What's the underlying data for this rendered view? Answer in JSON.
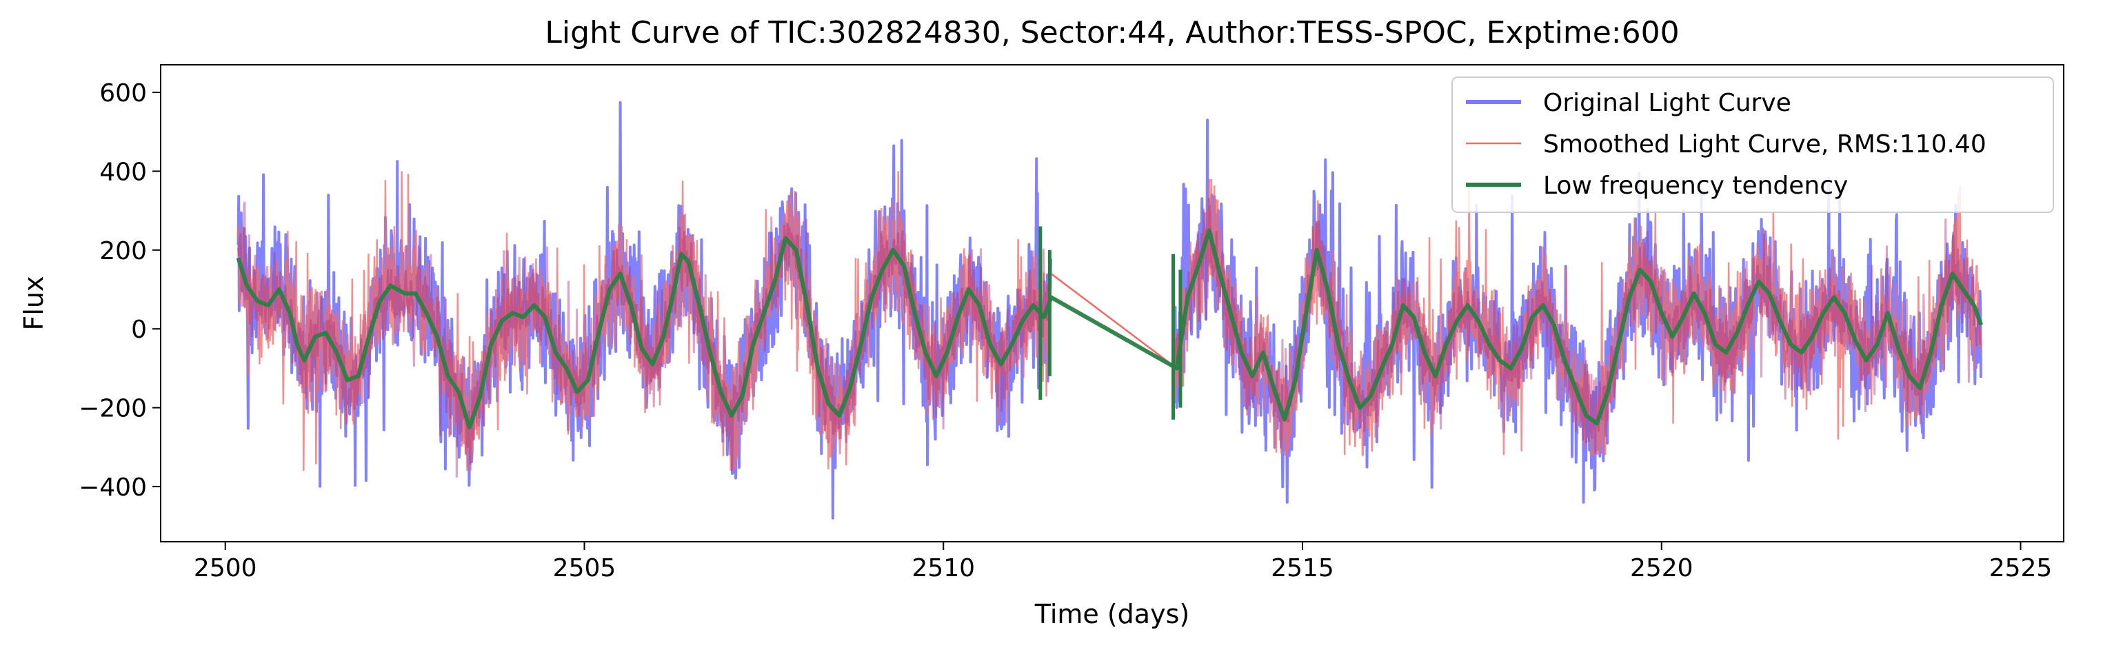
{
  "chart_data": {
    "type": "line",
    "title": "Light Curve of TIC:302824830, Sector:44, Author:TESS-SPOC, Exptime:600",
    "xlabel": "Time (days)",
    "ylabel": "Flux",
    "xlim": [
      2499.1,
      2525.6
    ],
    "ylim": [
      -540,
      670
    ],
    "x_ticks": [
      2500,
      2505,
      2510,
      2515,
      2520,
      2525
    ],
    "y_ticks": [
      -400,
      -200,
      0,
      200,
      400,
      600
    ],
    "x_tick_labels": [
      "2500",
      "2505",
      "2510",
      "2515",
      "2520",
      "2525"
    ],
    "y_tick_labels": [
      "−400",
      "−200",
      "0",
      "200",
      "400",
      "600"
    ],
    "grid": false,
    "legend_position": "top-right",
    "gap": [
      11.5,
      13.2
    ],
    "series": [
      {
        "name": "Original Light Curve",
        "color": "#7b7bff",
        "segments": [
          {
            "x_start": 2500.18,
            "x_end": 2511.5,
            "y_min": -480,
            "y_max": 615
          },
          {
            "x_start": 2513.2,
            "x_end": 2524.45,
            "y_min": -440,
            "y_max": 530
          }
        ]
      },
      {
        "name": "Smoothed Light Curve, RMS:110.40",
        "color": "#f06a6a",
        "segments": [
          {
            "x_start": 2500.18,
            "x_end": 2511.5,
            "y_min": -360,
            "y_max": 400
          },
          {
            "x_start": 2513.2,
            "x_end": 2524.45,
            "y_min": -320,
            "y_max": 380
          }
        ]
      },
      {
        "name": "Low frequency tendency",
        "color": "#2a7f45",
        "points": [
          [
            2500.18,
            180
          ],
          [
            2500.3,
            110
          ],
          [
            2500.45,
            70
          ],
          [
            2500.6,
            60
          ],
          [
            2500.75,
            100
          ],
          [
            2500.9,
            40
          ],
          [
            2501.0,
            -40
          ],
          [
            2501.1,
            -80
          ],
          [
            2501.25,
            -20
          ],
          [
            2501.4,
            -10
          ],
          [
            2501.55,
            -60
          ],
          [
            2501.7,
            -130
          ],
          [
            2501.85,
            -120
          ],
          [
            2502.0,
            -20
          ],
          [
            2502.15,
            70
          ],
          [
            2502.3,
            110
          ],
          [
            2502.5,
            90
          ],
          [
            2502.65,
            90
          ],
          [
            2502.8,
            40
          ],
          [
            2502.95,
            -20
          ],
          [
            2503.1,
            -120
          ],
          [
            2503.25,
            -160
          ],
          [
            2503.4,
            -250
          ],
          [
            2503.55,
            -170
          ],
          [
            2503.7,
            -40
          ],
          [
            2503.85,
            20
          ],
          [
            2504.0,
            40
          ],
          [
            2504.15,
            30
          ],
          [
            2504.3,
            60
          ],
          [
            2504.45,
            30
          ],
          [
            2504.6,
            -60
          ],
          [
            2504.75,
            -100
          ],
          [
            2504.9,
            -160
          ],
          [
            2505.05,
            -130
          ],
          [
            2505.2,
            -10
          ],
          [
            2505.35,
            100
          ],
          [
            2505.5,
            140
          ],
          [
            2505.65,
            60
          ],
          [
            2505.8,
            -50
          ],
          [
            2505.95,
            -90
          ],
          [
            2506.1,
            -20
          ],
          [
            2506.25,
            100
          ],
          [
            2506.35,
            190
          ],
          [
            2506.45,
            170
          ],
          [
            2506.6,
            60
          ],
          [
            2506.75,
            -60
          ],
          [
            2506.9,
            -160
          ],
          [
            2507.05,
            -220
          ],
          [
            2507.2,
            -170
          ],
          [
            2507.35,
            -40
          ],
          [
            2507.5,
            40
          ],
          [
            2507.65,
            120
          ],
          [
            2507.8,
            230
          ],
          [
            2507.95,
            200
          ],
          [
            2508.1,
            60
          ],
          [
            2508.25,
            -100
          ],
          [
            2508.4,
            -190
          ],
          [
            2508.55,
            -220
          ],
          [
            2508.7,
            -150
          ],
          [
            2508.85,
            -40
          ],
          [
            2509.0,
            80
          ],
          [
            2509.15,
            150
          ],
          [
            2509.3,
            200
          ],
          [
            2509.45,
            160
          ],
          [
            2509.6,
            40
          ],
          [
            2509.75,
            -60
          ],
          [
            2509.9,
            -120
          ],
          [
            2510.05,
            -60
          ],
          [
            2510.2,
            30
          ],
          [
            2510.35,
            100
          ],
          [
            2510.5,
            60
          ],
          [
            2510.65,
            -40
          ],
          [
            2510.8,
            -90
          ],
          [
            2510.95,
            -40
          ],
          [
            2511.1,
            20
          ],
          [
            2511.25,
            60
          ],
          [
            2511.4,
            30
          ],
          [
            2511.5,
            80
          ],
          [
            2513.25,
            -100
          ],
          [
            2513.4,
            80
          ],
          [
            2513.55,
            160
          ],
          [
            2513.7,
            250
          ],
          [
            2513.85,
            140
          ],
          [
            2514.0,
            40
          ],
          [
            2514.15,
            -60
          ],
          [
            2514.3,
            -120
          ],
          [
            2514.45,
            -60
          ],
          [
            2514.6,
            -150
          ],
          [
            2514.75,
            -230
          ],
          [
            2514.9,
            -130
          ],
          [
            2515.05,
            40
          ],
          [
            2515.2,
            200
          ],
          [
            2515.35,
            100
          ],
          [
            2515.5,
            -40
          ],
          [
            2515.65,
            -130
          ],
          [
            2515.8,
            -200
          ],
          [
            2515.95,
            -170
          ],
          [
            2516.1,
            -100
          ],
          [
            2516.25,
            -40
          ],
          [
            2516.4,
            60
          ],
          [
            2516.55,
            30
          ],
          [
            2516.7,
            -60
          ],
          [
            2516.85,
            -120
          ],
          [
            2517.0,
            -40
          ],
          [
            2517.15,
            20
          ],
          [
            2517.3,
            60
          ],
          [
            2517.45,
            20
          ],
          [
            2517.6,
            -40
          ],
          [
            2517.75,
            -80
          ],
          [
            2517.9,
            -100
          ],
          [
            2518.05,
            -50
          ],
          [
            2518.2,
            30
          ],
          [
            2518.35,
            60
          ],
          [
            2518.5,
            10
          ],
          [
            2518.65,
            -80
          ],
          [
            2518.8,
            -150
          ],
          [
            2518.95,
            -220
          ],
          [
            2519.1,
            -240
          ],
          [
            2519.25,
            -160
          ],
          [
            2519.4,
            -40
          ],
          [
            2519.55,
            80
          ],
          [
            2519.7,
            150
          ],
          [
            2519.85,
            120
          ],
          [
            2520.0,
            40
          ],
          [
            2520.15,
            -20
          ],
          [
            2520.3,
            30
          ],
          [
            2520.45,
            90
          ],
          [
            2520.6,
            40
          ],
          [
            2520.75,
            -40
          ],
          [
            2520.9,
            -60
          ],
          [
            2521.05,
            -10
          ],
          [
            2521.2,
            60
          ],
          [
            2521.35,
            120
          ],
          [
            2521.5,
            90
          ],
          [
            2521.65,
            20
          ],
          [
            2521.8,
            -40
          ],
          [
            2521.95,
            -60
          ],
          [
            2522.1,
            -20
          ],
          [
            2522.25,
            40
          ],
          [
            2522.4,
            80
          ],
          [
            2522.55,
            40
          ],
          [
            2522.7,
            -30
          ],
          [
            2522.85,
            -80
          ],
          [
            2523.0,
            -40
          ],
          [
            2523.15,
            40
          ],
          [
            2523.3,
            -50
          ],
          [
            2523.45,
            -120
          ],
          [
            2523.6,
            -150
          ],
          [
            2523.75,
            -60
          ],
          [
            2523.9,
            60
          ],
          [
            2524.05,
            140
          ],
          [
            2524.2,
            100
          ],
          [
            2524.35,
            60
          ],
          [
            2524.45,
            10
          ]
        ]
      }
    ]
  }
}
